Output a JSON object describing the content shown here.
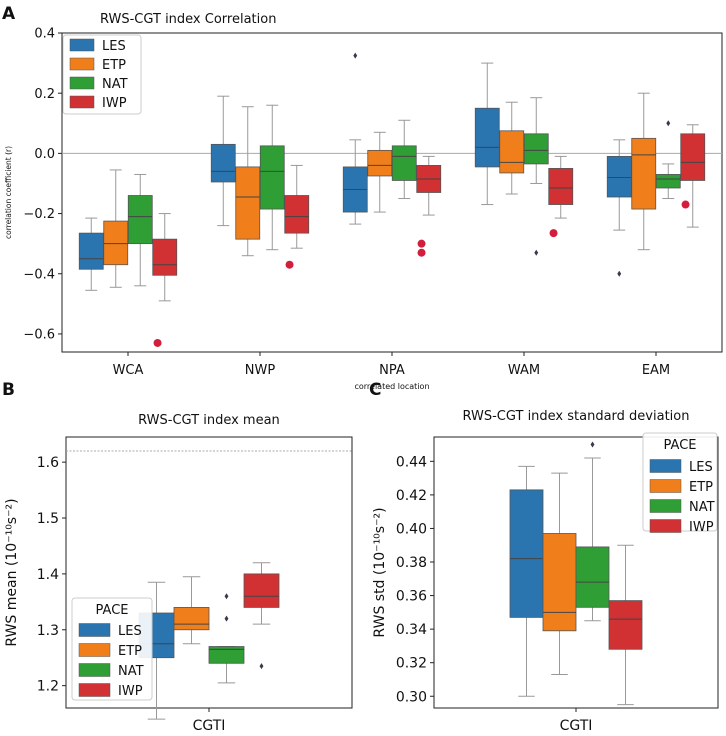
{
  "colors": {
    "LES": "#2a75b0",
    "ETP": "#f07f1b",
    "NAT": "#2e9e35",
    "IWP": "#d23134",
    "outlier": "#d21d3c",
    "grid": "#c8c8c8"
  },
  "chart_data": [
    {
      "panel": "A",
      "type": "box",
      "title": "RWS-CGT index Correlation",
      "xlabel": "correlated location",
      "ylabel": "correlation coefficient (r)",
      "ylim": [
        -0.66,
        0.4
      ],
      "yticks": [
        0.4,
        0.2,
        0.0,
        -0.2,
        -0.4,
        -0.6
      ],
      "ytick_labels": [
        "0.4",
        "0.2",
        "0.0",
        "−0.2",
        "−0.4",
        "−0.6"
      ],
      "reference_line": 0.0,
      "legend": {
        "position": "top-left",
        "title": "",
        "entries": [
          "LES",
          "ETP",
          "NAT",
          "IWP"
        ]
      },
      "categories": [
        "WCA",
        "NWP",
        "NPA",
        "WAM",
        "EAM"
      ],
      "series": [
        {
          "name": "LES",
          "boxes": [
            {
              "lo": -0.455,
              "q1": -0.385,
              "med": -0.35,
              "q3": -0.265,
              "hi": -0.215,
              "fliers": []
            },
            {
              "lo": -0.24,
              "q1": -0.095,
              "med": -0.06,
              "q3": 0.03,
              "hi": 0.19,
              "fliers": []
            },
            {
              "lo": -0.235,
              "q1": -0.195,
              "med": -0.12,
              "q3": -0.045,
              "hi": 0.045,
              "fliers": [
                0.325
              ]
            },
            {
              "lo": -0.17,
              "q1": -0.045,
              "med": 0.02,
              "q3": 0.15,
              "hi": 0.3,
              "fliers": []
            },
            {
              "lo": -0.255,
              "q1": -0.145,
              "med": -0.08,
              "q3": -0.01,
              "hi": 0.045,
              "fliers": [
                -0.4
              ]
            }
          ]
        },
        {
          "name": "ETP",
          "boxes": [
            {
              "lo": -0.445,
              "q1": -0.37,
              "med": -0.3,
              "q3": -0.225,
              "hi": -0.055,
              "fliers": []
            },
            {
              "lo": -0.34,
              "q1": -0.285,
              "med": -0.145,
              "q3": -0.045,
              "hi": 0.155,
              "fliers": []
            },
            {
              "lo": -0.195,
              "q1": -0.075,
              "med": -0.04,
              "q3": 0.01,
              "hi": 0.07,
              "fliers": []
            },
            {
              "lo": -0.135,
              "q1": -0.065,
              "med": -0.03,
              "q3": 0.075,
              "hi": 0.17,
              "fliers": []
            },
            {
              "lo": -0.32,
              "q1": -0.185,
              "med": -0.005,
              "q3": 0.05,
              "hi": 0.2,
              "fliers": []
            }
          ]
        },
        {
          "name": "NAT",
          "boxes": [
            {
              "lo": -0.44,
              "q1": -0.3,
              "med": -0.21,
              "q3": -0.14,
              "hi": -0.07,
              "fliers": []
            },
            {
              "lo": -0.32,
              "q1": -0.185,
              "med": -0.06,
              "q3": 0.025,
              "hi": 0.16,
              "fliers": []
            },
            {
              "lo": -0.15,
              "q1": -0.09,
              "med": -0.01,
              "q3": 0.025,
              "hi": 0.11,
              "fliers": []
            },
            {
              "lo": -0.1,
              "q1": -0.035,
              "med": 0.01,
              "q3": 0.065,
              "hi": 0.185,
              "fliers": [
                -0.33
              ]
            },
            {
              "lo": -0.15,
              "q1": -0.115,
              "med": -0.085,
              "q3": -0.07,
              "hi": -0.035,
              "fliers": [
                0.1
              ]
            }
          ]
        },
        {
          "name": "IWP",
          "boxes": [
            {
              "lo": -0.49,
              "q1": -0.405,
              "med": -0.37,
              "q3": -0.285,
              "hi": -0.2,
              "fliers": [
                -0.63
              ]
            },
            {
              "lo": -0.315,
              "q1": -0.265,
              "med": -0.21,
              "q3": -0.14,
              "hi": -0.04,
              "fliers": [
                -0.37
              ]
            },
            {
              "lo": -0.205,
              "q1": -0.13,
              "med": -0.085,
              "q3": -0.04,
              "hi": -0.01,
              "fliers": [
                -0.33,
                -0.3
              ]
            },
            {
              "lo": -0.215,
              "q1": -0.17,
              "med": -0.115,
              "q3": -0.05,
              "hi": -0.01,
              "fliers": [
                -0.265
              ]
            },
            {
              "lo": -0.245,
              "q1": -0.09,
              "med": -0.03,
              "q3": 0.065,
              "hi": 0.095,
              "fliers": [
                -0.17
              ]
            }
          ]
        }
      ]
    },
    {
      "panel": "B",
      "type": "box",
      "title": "RWS-CGT index mean",
      "xlabel": "CGTI",
      "ylabel": "RWS mean",
      "yunit": "(10⁻¹⁰s⁻²)",
      "ylim": [
        1.16,
        1.645
      ],
      "yticks": [
        1.6,
        1.5,
        1.4,
        1.3,
        1.2
      ],
      "ytick_labels": [
        "1.6",
        "1.5",
        "1.4",
        "1.3",
        "1.2"
      ],
      "reference_line": 1.62,
      "legend": {
        "position": "bottom-left",
        "title": "PACE",
        "entries": [
          "LES",
          "ETP",
          "NAT",
          "IWP"
        ]
      },
      "categories": [
        "CGTI"
      ],
      "series": [
        {
          "name": "LES",
          "boxes": [
            {
              "lo": 1.14,
              "q1": 1.25,
              "med": 1.275,
              "q3": 1.33,
              "hi": 1.385,
              "fliers": []
            }
          ]
        },
        {
          "name": "ETP",
          "boxes": [
            {
              "lo": 1.275,
              "q1": 1.3,
              "med": 1.31,
              "q3": 1.34,
              "hi": 1.395,
              "fliers": []
            }
          ]
        },
        {
          "name": "NAT",
          "boxes": [
            {
              "lo": 1.205,
              "q1": 1.24,
              "med": 1.265,
              "q3": 1.27,
              "hi": 1.27,
              "fliers": [
                1.36,
                1.32
              ]
            }
          ]
        },
        {
          "name": "IWP",
          "boxes": [
            {
              "lo": 1.31,
              "q1": 1.34,
              "med": 1.36,
              "q3": 1.4,
              "hi": 1.42,
              "fliers": [
                1.235
              ]
            }
          ]
        }
      ]
    },
    {
      "panel": "C",
      "type": "box",
      "title": "RWS-CGT index standard deviation",
      "xlabel": "CGTI",
      "ylabel": "RWS std",
      "yunit": "(10⁻¹⁰s⁻²)",
      "ylim": [
        0.293,
        0.4545
      ],
      "yticks": [
        0.44,
        0.42,
        0.4,
        0.38,
        0.36,
        0.34,
        0.32,
        0.3
      ],
      "ytick_labels": [
        "0.44",
        "0.42",
        "0.40",
        "0.38",
        "0.36",
        "0.34",
        "0.32",
        "0.30"
      ],
      "reference_line": null,
      "legend": {
        "position": "top-right",
        "title": "PACE",
        "entries": [
          "LES",
          "ETP",
          "NAT",
          "IWP"
        ]
      },
      "categories": [
        "CGTI"
      ],
      "series": [
        {
          "name": "LES",
          "boxes": [
            {
              "lo": 0.3,
              "q1": 0.347,
              "med": 0.382,
              "q3": 0.423,
              "hi": 0.437,
              "fliers": []
            }
          ]
        },
        {
          "name": "ETP",
          "boxes": [
            {
              "lo": 0.313,
              "q1": 0.339,
              "med": 0.35,
              "q3": 0.397,
              "hi": 0.433,
              "fliers": []
            }
          ]
        },
        {
          "name": "NAT",
          "boxes": [
            {
              "lo": 0.345,
              "q1": 0.353,
              "med": 0.368,
              "q3": 0.389,
              "hi": 0.442,
              "fliers": [
                0.45
              ]
            }
          ]
        },
        {
          "name": "IWP",
          "boxes": [
            {
              "lo": 0.295,
              "q1": 0.328,
              "med": 0.346,
              "q3": 0.357,
              "hi": 0.39,
              "fliers": []
            }
          ]
        }
      ]
    }
  ]
}
